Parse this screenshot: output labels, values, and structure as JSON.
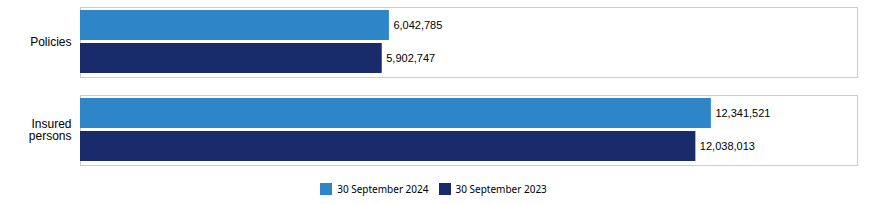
{
  "chart_data": {
    "type": "bar",
    "orientation": "horizontal",
    "categories": [
      "Policies",
      "Insured\npersons"
    ],
    "series": [
      {
        "name": "30 September 2024",
        "color": "#2e86c8",
        "values": [
          6042785,
          12341521
        ],
        "value_labels": [
          "6,042,785",
          "12,341,521"
        ]
      },
      {
        "name": "30 September 2023",
        "color": "#1a2b6b",
        "values": [
          5902747,
          12038013
        ],
        "value_labels": [
          "5,902,747",
          "12,038,013"
        ]
      }
    ],
    "xlim": [
      0,
      15200000
    ],
    "data_labels": true,
    "tick_labels": "y",
    "grid": false,
    "legend": "bottom"
  }
}
